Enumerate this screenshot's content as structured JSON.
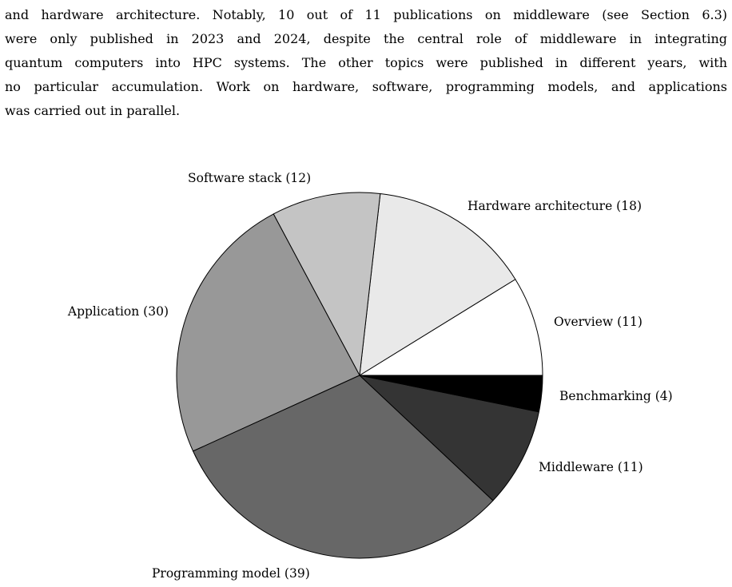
{
  "paragraph": {
    "lines": [
      "and hardware architecture. Notably, 10 out of 11 publications on middleware (see Section 6.3)",
      "were only published in 2023 and 2024, despite the central role of middleware in integrating",
      "quantum computers into HPC systems. The other topics were published in different years, with",
      "no particular accumulation. Work on hardware, software, programming models, and applications",
      "was carried out in parallel."
    ]
  },
  "chart_data": {
    "type": "pie",
    "title": "",
    "start_angle_deg": 0,
    "direction": "counterclockwise",
    "slices": [
      {
        "label": "Overview (11)",
        "name": "Overview",
        "value": 11,
        "color": "#ffffff"
      },
      {
        "label": "Hardware architecture (18)",
        "name": "Hardware architecture",
        "value": 18,
        "color": "#e9e9e9"
      },
      {
        "label": "Software stack (12)",
        "name": "Software stack",
        "value": 12,
        "color": "#c4c4c4"
      },
      {
        "label": "Application (30)",
        "name": "Application",
        "value": 30,
        "color": "#989898"
      },
      {
        "label": "Programming model (39)",
        "name": "Programming model",
        "value": 39,
        "color": "#676767"
      },
      {
        "label": "Middleware (11)",
        "name": "Middleware",
        "value": 11,
        "color": "#343434"
      },
      {
        "label": "Benchmarking (4)",
        "name": "Benchmarking",
        "value": 4,
        "color": "#000000"
      }
    ]
  }
}
